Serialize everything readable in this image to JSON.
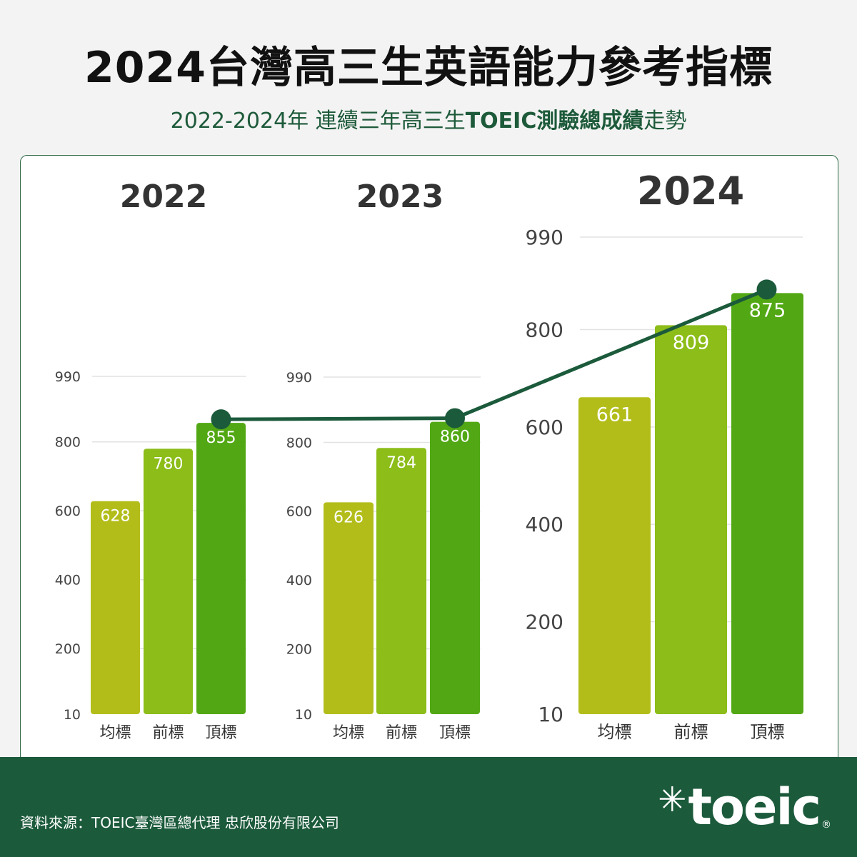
{
  "header": {
    "title": "2024台灣高三生英語能力參考指標",
    "subtitle_part1": "2022-2024年 連續三年高三生",
    "subtitle_bold": "TOEIC測驗總成績",
    "subtitle_part2": "走勢"
  },
  "footer": {
    "source": "資料來源：TOEIC臺灣區總代理 忠欣股份有限公司",
    "logo_text": "toeic",
    "logo_star": "✳",
    "logo_reg": "®"
  },
  "colors": {
    "avg_bar": "#b3bd1a",
    "front_bar": "#8cbd18",
    "top_bar": "#52a814",
    "trend_line": "#1b5a3b",
    "footer_bg": "#1b5a3b"
  },
  "chart_data": [
    {
      "type": "bar",
      "year_label": "2022",
      "categories": [
        "均標",
        "前標",
        "頂標"
      ],
      "values": [
        628,
        780,
        855
      ],
      "value_labels": [
        "628",
        "780",
        "855"
      ],
      "y_ticks": [
        10,
        200,
        400,
        600,
        800,
        990
      ],
      "y_tick_labels": [
        "10",
        "200",
        "400",
        "600",
        "800",
        "990"
      ],
      "ylim": [
        10,
        990
      ],
      "grid": true
    },
    {
      "type": "bar",
      "year_label": "2023",
      "categories": [
        "均標",
        "前標",
        "頂標"
      ],
      "values": [
        626,
        784,
        860
      ],
      "value_labels": [
        "626",
        "784",
        "860"
      ],
      "y_ticks": [
        10,
        200,
        400,
        600,
        800,
        990
      ],
      "y_tick_labels": [
        "10",
        "200",
        "400",
        "600",
        "800",
        "990"
      ],
      "ylim": [
        10,
        990
      ],
      "grid": true
    },
    {
      "type": "bar",
      "year_label": "2024",
      "categories": [
        "均標",
        "前標",
        "頂標"
      ],
      "values": [
        661,
        809,
        875
      ],
      "value_labels": [
        "661",
        "809",
        "875"
      ],
      "y_ticks": [
        10,
        200,
        400,
        600,
        800,
        990
      ],
      "y_tick_labels": [
        "10",
        "200",
        "400",
        "600",
        "800",
        "990"
      ],
      "ylim": [
        10,
        990
      ],
      "grid": true
    }
  ],
  "trend": {
    "type": "line",
    "x": [
      "2022",
      "2023",
      "2024"
    ],
    "values": [
      855,
      860,
      875
    ]
  }
}
